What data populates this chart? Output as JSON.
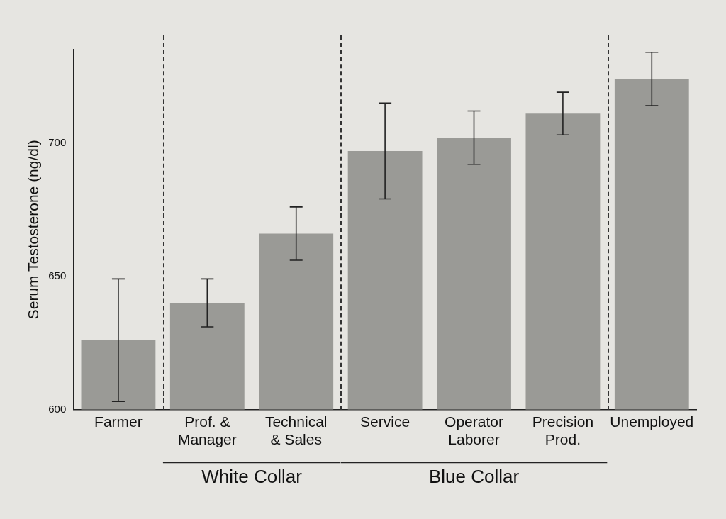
{
  "chart_data": {
    "type": "bar",
    "ylabel": "Serum Testosterone (ng/dl)",
    "categories": [
      "Farmer",
      "Prof. &\nManager",
      "Technical\n& Sales",
      "Service",
      "Operator\nLaborer",
      "Precision\nProd.",
      "Unemployed"
    ],
    "values": [
      626,
      640,
      666,
      697,
      702,
      711,
      724
    ],
    "errors": [
      23,
      9,
      10,
      18,
      10,
      8,
      10
    ],
    "color": "#9a9a96",
    "ylim": [
      600,
      735
    ],
    "yticks": [
      600,
      650,
      700
    ],
    "grid": false,
    "legend": false,
    "annotations": [
      "White Collar",
      "Blue Collar"
    ]
  }
}
